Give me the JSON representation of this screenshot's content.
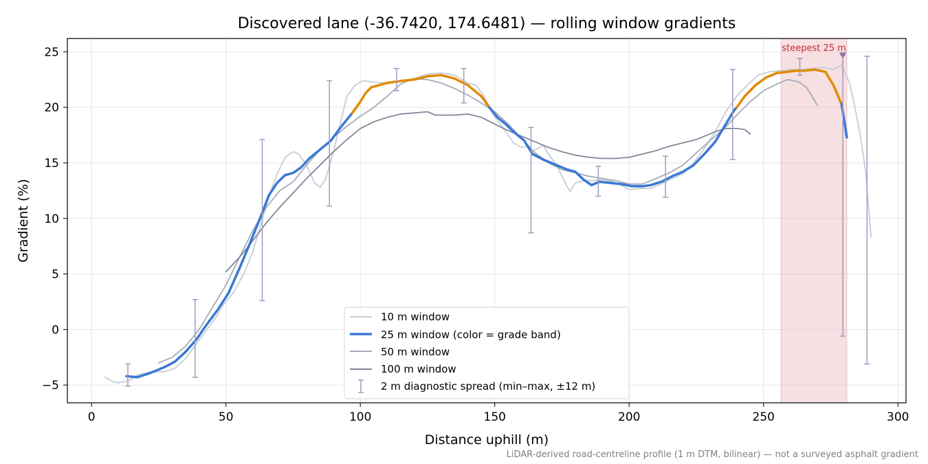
{
  "chart_data": {
    "type": "line",
    "title": "Discovered lane (-36.7420, 174.6481) — rolling window gradients",
    "xlabel": "Distance uphill (m)",
    "ylabel": "Gradient (%)",
    "xlim": [
      -9,
      303
    ],
    "ylim": [
      -6.6,
      26.2
    ],
    "xticks": [
      0,
      50,
      100,
      150,
      200,
      250,
      300
    ],
    "yticks": [
      -5,
      0,
      5,
      10,
      15,
      20,
      25
    ],
    "grid": true,
    "legend_position": "lower-center",
    "footnote": "LiDAR-derived road-centreline profile (1 m DTM, bilinear) — not a surveyed asphalt gradient",
    "colors": {
      "w10": "#c6ccd6",
      "w25_moderate": "#3a78d4",
      "w25_steep": "#e08a00",
      "w50": "#a3abbb",
      "w100": "#7f8899",
      "errorbar": "#9e9bc0",
      "highlight": "#e7a6ad",
      "annotation": "#c8283c",
      "marker": "#8a7aa6"
    },
    "grade_threshold": 20,
    "series": [
      {
        "key": "w10",
        "name": "10 m window",
        "points": [
          [
            5,
            -4.3
          ],
          [
            8,
            -4.7
          ],
          [
            10,
            -4.8
          ],
          [
            14,
            -4.6
          ],
          [
            17,
            -4.1
          ],
          [
            22,
            -3.8
          ],
          [
            27,
            -3.8
          ],
          [
            31,
            -3.5
          ],
          [
            35,
            -2.6
          ],
          [
            38,
            -1.6
          ],
          [
            42,
            -0.3
          ],
          [
            46,
            1.0
          ],
          [
            49,
            2.2
          ],
          [
            53,
            3.4
          ],
          [
            57,
            5.2
          ],
          [
            60,
            7.0
          ],
          [
            63,
            9.5
          ],
          [
            66,
            12.0
          ],
          [
            69,
            14.0
          ],
          [
            72,
            15.5
          ],
          [
            75,
            16.0
          ],
          [
            77,
            15.8
          ],
          [
            80,
            14.8
          ],
          [
            83,
            13.2
          ],
          [
            85,
            12.8
          ],
          [
            87,
            13.5
          ],
          [
            90,
            16.0
          ],
          [
            93,
            19.0
          ],
          [
            95,
            21.0
          ],
          [
            98,
            22.0
          ],
          [
            101,
            22.4
          ],
          [
            104,
            22.3
          ],
          [
            108,
            22.2
          ],
          [
            112,
            22.3
          ],
          [
            116,
            22.4
          ],
          [
            120,
            22.6
          ],
          [
            125,
            23.0
          ],
          [
            130,
            23.1
          ],
          [
            135,
            22.9
          ],
          [
            140,
            22.2
          ],
          [
            143,
            22.0
          ],
          [
            146,
            21.0
          ],
          [
            149,
            19.5
          ],
          [
            152,
            18.5
          ],
          [
            155,
            17.5
          ],
          [
            157,
            16.8
          ],
          [
            160,
            16.4
          ],
          [
            162,
            16.5
          ],
          [
            164,
            16.0
          ],
          [
            166,
            16.3
          ],
          [
            168,
            16.6
          ],
          [
            170,
            15.8
          ],
          [
            173,
            14.8
          ],
          [
            176,
            13.3
          ],
          [
            178,
            12.4
          ],
          [
            180,
            13.2
          ],
          [
            183,
            13.4
          ],
          [
            186,
            13.4
          ],
          [
            190,
            13.5
          ],
          [
            194,
            13.3
          ],
          [
            197,
            13.0
          ],
          [
            200,
            12.6
          ],
          [
            204,
            12.7
          ],
          [
            208,
            12.7
          ],
          [
            212,
            13.1
          ],
          [
            216,
            13.6
          ],
          [
            220,
            14.0
          ],
          [
            224,
            15.0
          ],
          [
            228,
            16.3
          ],
          [
            232,
            17.8
          ],
          [
            236,
            19.6
          ],
          [
            240,
            21.0
          ],
          [
            244,
            22.0
          ],
          [
            248,
            22.9
          ],
          [
            252,
            23.2
          ],
          [
            256,
            23.3
          ],
          [
            260,
            23.4
          ],
          [
            264,
            23.4
          ],
          [
            268,
            23.5
          ],
          [
            272,
            23.6
          ],
          [
            276,
            23.4
          ],
          [
            279,
            23.8
          ],
          [
            282,
            22.2
          ],
          [
            284,
            20.0
          ],
          [
            286,
            17.5
          ],
          [
            288,
            14.2
          ],
          [
            290,
            8.3
          ]
        ]
      },
      {
        "key": "w25",
        "name": "25 m window (color = grade band)",
        "points": [
          [
            13,
            -4.2
          ],
          [
            17,
            -4.3
          ],
          [
            22,
            -3.9
          ],
          [
            27,
            -3.4
          ],
          [
            31,
            -2.9
          ],
          [
            35,
            -2.0
          ],
          [
            39,
            -0.9
          ],
          [
            43,
            0.5
          ],
          [
            47,
            1.8
          ],
          [
            51,
            3.3
          ],
          [
            55,
            5.5
          ],
          [
            59,
            7.8
          ],
          [
            63,
            10.2
          ],
          [
            66,
            12.1
          ],
          [
            69,
            13.2
          ],
          [
            72,
            13.9
          ],
          [
            75,
            14.1
          ],
          [
            78,
            14.6
          ],
          [
            81,
            15.4
          ],
          [
            85,
            16.2
          ],
          [
            89,
            17.0
          ],
          [
            93,
            18.3
          ],
          [
            97,
            19.5
          ],
          [
            100,
            20.5
          ],
          [
            102,
            21.3
          ],
          [
            104,
            21.8
          ],
          [
            107,
            22.0
          ],
          [
            110,
            22.2
          ],
          [
            113,
            22.3
          ],
          [
            116,
            22.4
          ],
          [
            120,
            22.5
          ],
          [
            125,
            22.8
          ],
          [
            130,
            22.9
          ],
          [
            135,
            22.6
          ],
          [
            140,
            22.0
          ],
          [
            145,
            21.0
          ],
          [
            148,
            20.0
          ],
          [
            151,
            19.1
          ],
          [
            154,
            18.5
          ],
          [
            157,
            17.8
          ],
          [
            161,
            17.0
          ],
          [
            164,
            15.8
          ],
          [
            168,
            15.3
          ],
          [
            173,
            14.8
          ],
          [
            177,
            14.4
          ],
          [
            180,
            14.2
          ],
          [
            183,
            13.5
          ],
          [
            186,
            13.0
          ],
          [
            189,
            13.3
          ],
          [
            193,
            13.2
          ],
          [
            197,
            13.1
          ],
          [
            201,
            12.9
          ],
          [
            205,
            12.9
          ],
          [
            208,
            13.0
          ],
          [
            212,
            13.3
          ],
          [
            216,
            13.8
          ],
          [
            220,
            14.2
          ],
          [
            224,
            14.8
          ],
          [
            228,
            15.8
          ],
          [
            232,
            16.9
          ],
          [
            236,
            18.5
          ],
          [
            239,
            19.7
          ],
          [
            240,
            20.0
          ],
          [
            243,
            21.0
          ],
          [
            247,
            22.0
          ],
          [
            251,
            22.7
          ],
          [
            255,
            23.1
          ],
          [
            259,
            23.2
          ],
          [
            262,
            23.3
          ],
          [
            265,
            23.3
          ],
          [
            269,
            23.4
          ],
          [
            273,
            23.2
          ],
          [
            276,
            22.0
          ],
          [
            279,
            20.3
          ],
          [
            281,
            17.3
          ]
        ]
      },
      {
        "key": "w50",
        "name": "50 m window",
        "points": [
          [
            25,
            -3.0
          ],
          [
            30,
            -2.5
          ],
          [
            35,
            -1.5
          ],
          [
            40,
            0.0
          ],
          [
            45,
            2.0
          ],
          [
            50,
            4.0
          ],
          [
            55,
            6.5
          ],
          [
            60,
            8.9
          ],
          [
            65,
            11.0
          ],
          [
            70,
            12.5
          ],
          [
            75,
            13.3
          ],
          [
            80,
            14.8
          ],
          [
            85,
            16.2
          ],
          [
            90,
            17.3
          ],
          [
            95,
            18.3
          ],
          [
            100,
            19.2
          ],
          [
            105,
            20.0
          ],
          [
            110,
            21.0
          ],
          [
            115,
            22.1
          ],
          [
            120,
            22.6
          ],
          [
            125,
            22.5
          ],
          [
            130,
            22.2
          ],
          [
            135,
            21.7
          ],
          [
            140,
            21.1
          ],
          [
            145,
            20.4
          ],
          [
            150,
            19.6
          ],
          [
            155,
            18.5
          ],
          [
            160,
            17.2
          ],
          [
            165,
            15.9
          ],
          [
            170,
            15.0
          ],
          [
            175,
            14.4
          ],
          [
            180,
            14.1
          ],
          [
            185,
            13.8
          ],
          [
            190,
            13.6
          ],
          [
            195,
            13.4
          ],
          [
            200,
            13.1
          ],
          [
            205,
            13.1
          ],
          [
            210,
            13.6
          ],
          [
            215,
            14.1
          ],
          [
            220,
            14.8
          ],
          [
            225,
            15.9
          ],
          [
            230,
            17.0
          ],
          [
            235,
            18.0
          ],
          [
            240,
            19.3
          ],
          [
            245,
            20.5
          ],
          [
            250,
            21.5
          ],
          [
            255,
            22.1
          ],
          [
            259,
            22.5
          ],
          [
            263,
            22.3
          ],
          [
            266,
            21.8
          ],
          [
            268,
            21.0
          ],
          [
            270,
            20.2
          ]
        ]
      },
      {
        "key": "w100",
        "name": "100 m window",
        "points": [
          [
            50,
            5.2
          ],
          [
            55,
            6.5
          ],
          [
            60,
            8.0
          ],
          [
            65,
            9.6
          ],
          [
            70,
            11.0
          ],
          [
            75,
            12.3
          ],
          [
            80,
            13.6
          ],
          [
            85,
            14.8
          ],
          [
            90,
            16.0
          ],
          [
            95,
            17.1
          ],
          [
            100,
            18.1
          ],
          [
            105,
            18.7
          ],
          [
            110,
            19.1
          ],
          [
            115,
            19.4
          ],
          [
            120,
            19.5
          ],
          [
            125,
            19.6
          ],
          [
            128,
            19.3
          ],
          [
            135,
            19.3
          ],
          [
            140,
            19.4
          ],
          [
            145,
            19.1
          ],
          [
            150,
            18.5
          ],
          [
            155,
            17.9
          ],
          [
            160,
            17.4
          ],
          [
            165,
            16.9
          ],
          [
            170,
            16.4
          ],
          [
            175,
            16.0
          ],
          [
            180,
            15.7
          ],
          [
            185,
            15.5
          ],
          [
            190,
            15.4
          ],
          [
            195,
            15.4
          ],
          [
            200,
            15.5
          ],
          [
            205,
            15.8
          ],
          [
            210,
            16.1
          ],
          [
            215,
            16.5
          ],
          [
            220,
            16.8
          ],
          [
            225,
            17.1
          ],
          [
            228,
            17.4
          ],
          [
            232,
            17.8
          ],
          [
            236,
            18.1
          ],
          [
            240,
            18.1
          ],
          [
            243,
            18.0
          ],
          [
            245,
            17.6
          ]
        ]
      }
    ],
    "errorbars": {
      "name": "2 m diagnostic spread (min–max, ±12 m)",
      "points": [
        {
          "x": 13.5,
          "y": -4.2,
          "min": -5.1,
          "max": -3.1
        },
        {
          "x": 38.5,
          "y": -1.0,
          "min": -4.3,
          "max": 2.7
        },
        {
          "x": 63.5,
          "y": 10.2,
          "min": 2.6,
          "max": 17.1
        },
        {
          "x": 88.5,
          "y": 16.8,
          "min": 11.1,
          "max": 22.4
        },
        {
          "x": 113.5,
          "y": 22.3,
          "min": 21.5,
          "max": 23.5
        },
        {
          "x": 138.5,
          "y": 22.1,
          "min": 20.4,
          "max": 23.5
        },
        {
          "x": 163.5,
          "y": 16.0,
          "min": 8.7,
          "max": 18.2
        },
        {
          "x": 188.5,
          "y": 13.2,
          "min": 12.0,
          "max": 14.7
        },
        {
          "x": 213.5,
          "y": 13.4,
          "min": 11.9,
          "max": 15.6
        },
        {
          "x": 238.5,
          "y": 19.6,
          "min": 15.3,
          "max": 23.4
        },
        {
          "x": 263.5,
          "y": 23.3,
          "min": 22.9,
          "max": 24.4
        },
        {
          "x": 279.5,
          "y": 20.5,
          "min": -0.6,
          "max": 24.7
        },
        {
          "x": 288.5,
          "y": 8.5,
          "min": -3.1,
          "max": 24.6
        }
      ]
    },
    "highlight": {
      "x_start": 256.5,
      "x_end": 281,
      "label": "steepest 25 m",
      "marker_x": 279.5,
      "marker_y": 24.7
    }
  }
}
